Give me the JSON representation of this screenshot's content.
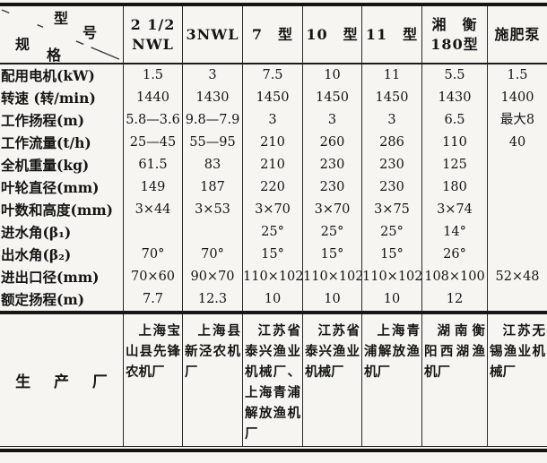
{
  "table": {
    "corner": {
      "top_label_char1": "型",
      "top_label_char2": "号",
      "bottom_label_char1": "规",
      "bottom_label_char2": "格"
    },
    "columns": [
      {
        "line1": "2 1/2",
        "line2": "NWL"
      },
      {
        "line1": "3NWL"
      },
      {
        "line1": "7　型"
      },
      {
        "line1": "10　型"
      },
      {
        "line1": "11　型"
      },
      {
        "line1": "湘　衡",
        "line2": "180型"
      },
      {
        "line1": "施肥泵"
      }
    ],
    "rows": [
      {
        "label": "配用电机(kW)",
        "values": [
          "1.5",
          "3",
          "7.5",
          "10",
          "11",
          "5.5",
          "1.5"
        ]
      },
      {
        "label": "转速 (转/min)",
        "values": [
          "1440",
          "1430",
          "1450",
          "1450",
          "1450",
          "1430",
          "1400"
        ]
      },
      {
        "label": "工作扬程(m)",
        "values": [
          "5.8—3.6",
          "9.8—7.9",
          "3",
          "3",
          "3",
          "6.5",
          "最大8"
        ]
      },
      {
        "label": "工作流量(t/h)",
        "values": [
          "25—45",
          "55—95",
          "210",
          "260",
          "286",
          "110",
          "40"
        ]
      },
      {
        "label": "全机重量(kg)",
        "values": [
          "61.5",
          "83",
          "210",
          "230",
          "230",
          "125",
          ""
        ]
      },
      {
        "label": "叶轮直径(mm)",
        "values": [
          "149",
          "187",
          "220",
          "230",
          "230",
          "180",
          ""
        ]
      },
      {
        "label": "叶数和高度(mm)",
        "values": [
          "3×44",
          "3×53",
          "3×70",
          "3×70",
          "3×75",
          "3×74",
          ""
        ]
      },
      {
        "label": "进水角(β₁)",
        "values": [
          "",
          "",
          "25°",
          "25°",
          "25°",
          "14°",
          ""
        ]
      },
      {
        "label": "出水角(β₂)",
        "values": [
          "70°",
          "70°",
          "15°",
          "15°",
          "15°",
          "26°",
          ""
        ]
      },
      {
        "label": "进出口径(mm)",
        "values": [
          "70×60",
          "90×70",
          "110×102",
          "110×102",
          "110×102",
          "108×100",
          "52×48"
        ]
      },
      {
        "label": "额定扬程(m)",
        "values": [
          "7.7",
          "12.3",
          "10",
          "10",
          "10",
          "12",
          ""
        ]
      }
    ],
    "factory": {
      "label": "生 产 厂",
      "values": [
        "上海宝山县先锋农机厂",
        "上海县新泾农机厂",
        "江苏省泰兴渔业机械厂、上海青浦解放渔机厂",
        "江苏省泰兴渔业机械厂",
        "上海青浦解放渔机厂",
        "湖南衡阳西湖渔机厂",
        "江苏无锡渔业机械厂"
      ]
    }
  }
}
